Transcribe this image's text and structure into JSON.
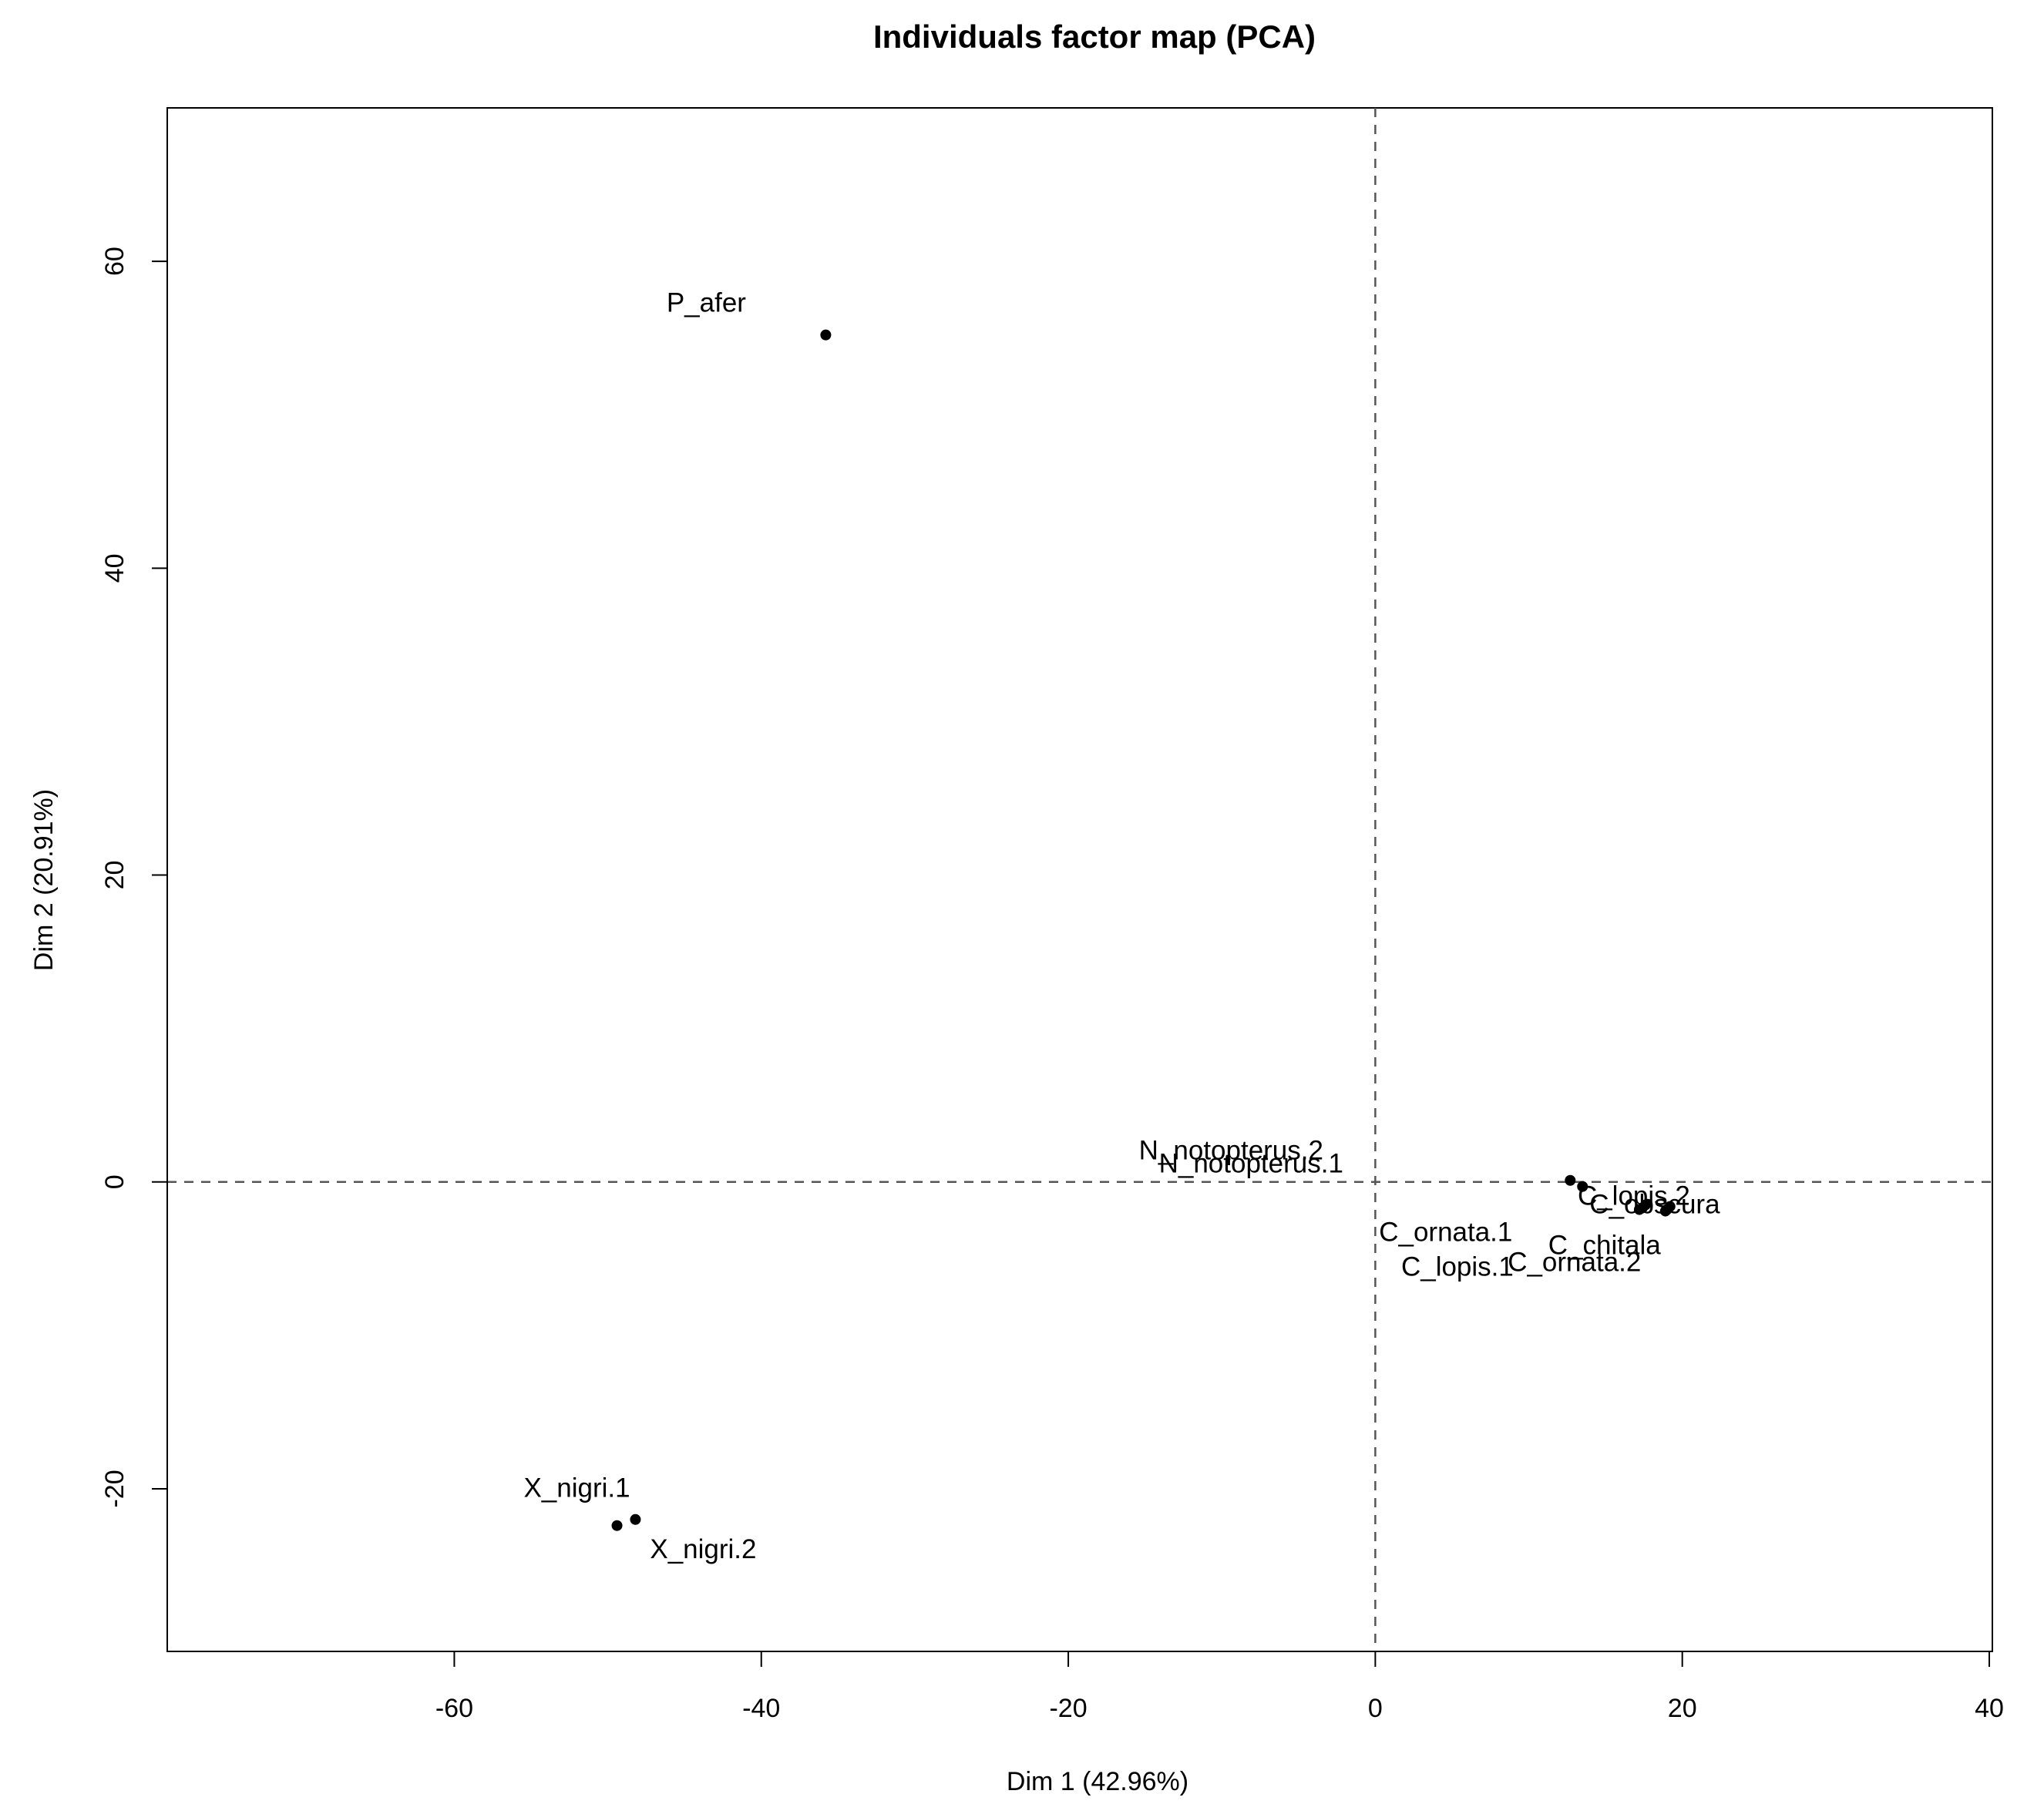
{
  "chart_data": {
    "type": "scatter",
    "title": "Individuals factor map (PCA)",
    "xlabel": "Dim 1 (42.96%)",
    "ylabel": "Dim 2 (20.91%)",
    "xlim": [
      -78.7,
      40.2
    ],
    "ylim": [
      -30.6,
      70.0
    ],
    "xticks": [
      -60,
      -40,
      -20,
      0,
      20,
      40
    ],
    "yticks": [
      -20,
      0,
      20,
      40,
      60
    ],
    "reference_lines": {
      "x": 0,
      "y": 0,
      "style": "dashed"
    },
    "grid": false,
    "legend": "none",
    "points": [
      {
        "label": "P_afer",
        "x": -35.8,
        "y": 55.2
      },
      {
        "label": "X_nigri.1",
        "x": -49.4,
        "y": -22.4
      },
      {
        "label": "X_nigri.2",
        "x": -48.2,
        "y": -22.0
      },
      {
        "label": "N_notopterus.2",
        "x": 12.7,
        "y": 0.1
      },
      {
        "label": "N_notopterus.1",
        "x": 13.5,
        "y": -0.3
      },
      {
        "label": "C_obscura",
        "x": 17.2,
        "y": -1.8
      },
      {
        "label": "C_lopis.2",
        "x": 17.6,
        "y": -1.5
      },
      {
        "label": "C_ornata.1",
        "x": 18.9,
        "y": -1.9
      },
      {
        "label": "C_lopis.1",
        "x": 17.4,
        "y": -1.7
      },
      {
        "label": "C_chitala",
        "x": 19.2,
        "y": -1.6
      },
      {
        "label": "C_ornata.2",
        "x": 19.0,
        "y": -1.8
      }
    ]
  }
}
